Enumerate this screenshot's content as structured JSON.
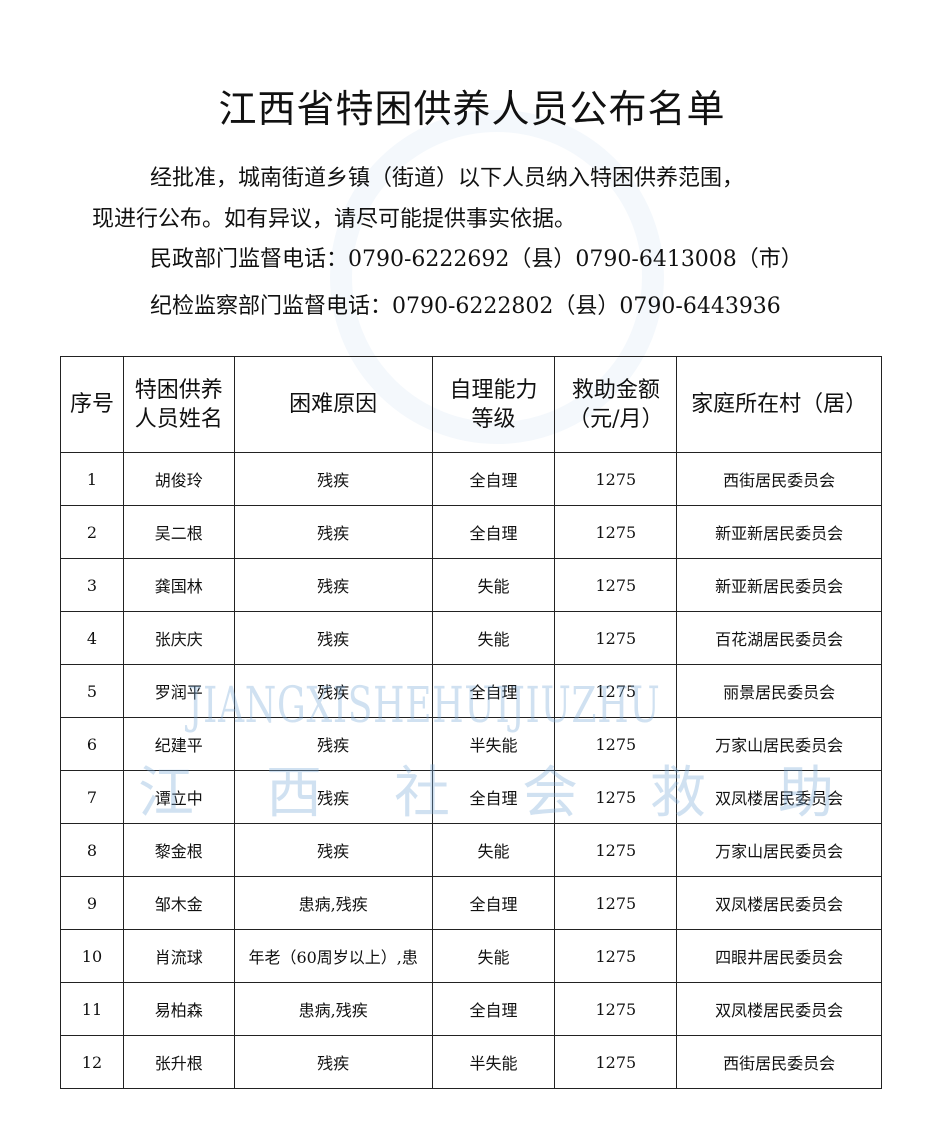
{
  "title": "江西省特困供养人员公布名单",
  "intro_line1": "经批准，城南街道乡镇（街道）以下人员纳入特困供养范围，",
  "intro_line2": "现进行公布。如有异议，请尽可能提供事实依据。",
  "civil_phone": "民政部门监督电话：0790-6222692（县）0790-6413008（市）",
  "discipline_phone": "纪检监察部门监督电话：0790-6222802（县）0790-6443936",
  "watermark": {
    "en": "JIANGXISHEHUIJIUZHU",
    "cn": "江西社会救助"
  },
  "table": {
    "headers": [
      "序号",
      "特困供养人员姓名",
      "困难原因",
      "自理能力等级",
      "救助金额（元/月）",
      "家庭所在村（居）"
    ],
    "header_lines": {
      "h1": [
        "特困供养",
        "人员姓名"
      ],
      "h3": [
        "自理能力",
        "等级"
      ],
      "h4": [
        "救助金额",
        "（元/月）"
      ]
    },
    "rows": [
      [
        "1",
        "胡俊玲",
        "残疾",
        "全自理",
        "1275",
        "西街居民委员会"
      ],
      [
        "2",
        "吴二根",
        "残疾",
        "全自理",
        "1275",
        "新亚新居民委员会"
      ],
      [
        "3",
        "龚国林",
        "残疾",
        "失能",
        "1275",
        "新亚新居民委员会"
      ],
      [
        "4",
        "张庆庆",
        "残疾",
        "失能",
        "1275",
        "百花湖居民委员会"
      ],
      [
        "5",
        "罗润平",
        "残疾",
        "全自理",
        "1275",
        "丽景居民委员会"
      ],
      [
        "6",
        "纪建平",
        "残疾",
        "半失能",
        "1275",
        "万家山居民委员会"
      ],
      [
        "7",
        "谭立中",
        "残疾",
        "全自理",
        "1275",
        "双凤楼居民委员会"
      ],
      [
        "8",
        "黎金根",
        "残疾",
        "失能",
        "1275",
        "万家山居民委员会"
      ],
      [
        "9",
        "邹木金",
        "患病,残疾",
        "全自理",
        "1275",
        "双凤楼居民委员会"
      ],
      [
        "10",
        "肖流球",
        "年老（60周岁以上）,患",
        "失能",
        "1275",
        "四眼井居民委员会"
      ],
      [
        "11",
        "易柏森",
        "患病,残疾",
        "全自理",
        "1275",
        "双凤楼居民委员会"
      ],
      [
        "12",
        "张升根",
        "残疾",
        "半失能",
        "1275",
        "西街居民委员会"
      ]
    ]
  }
}
